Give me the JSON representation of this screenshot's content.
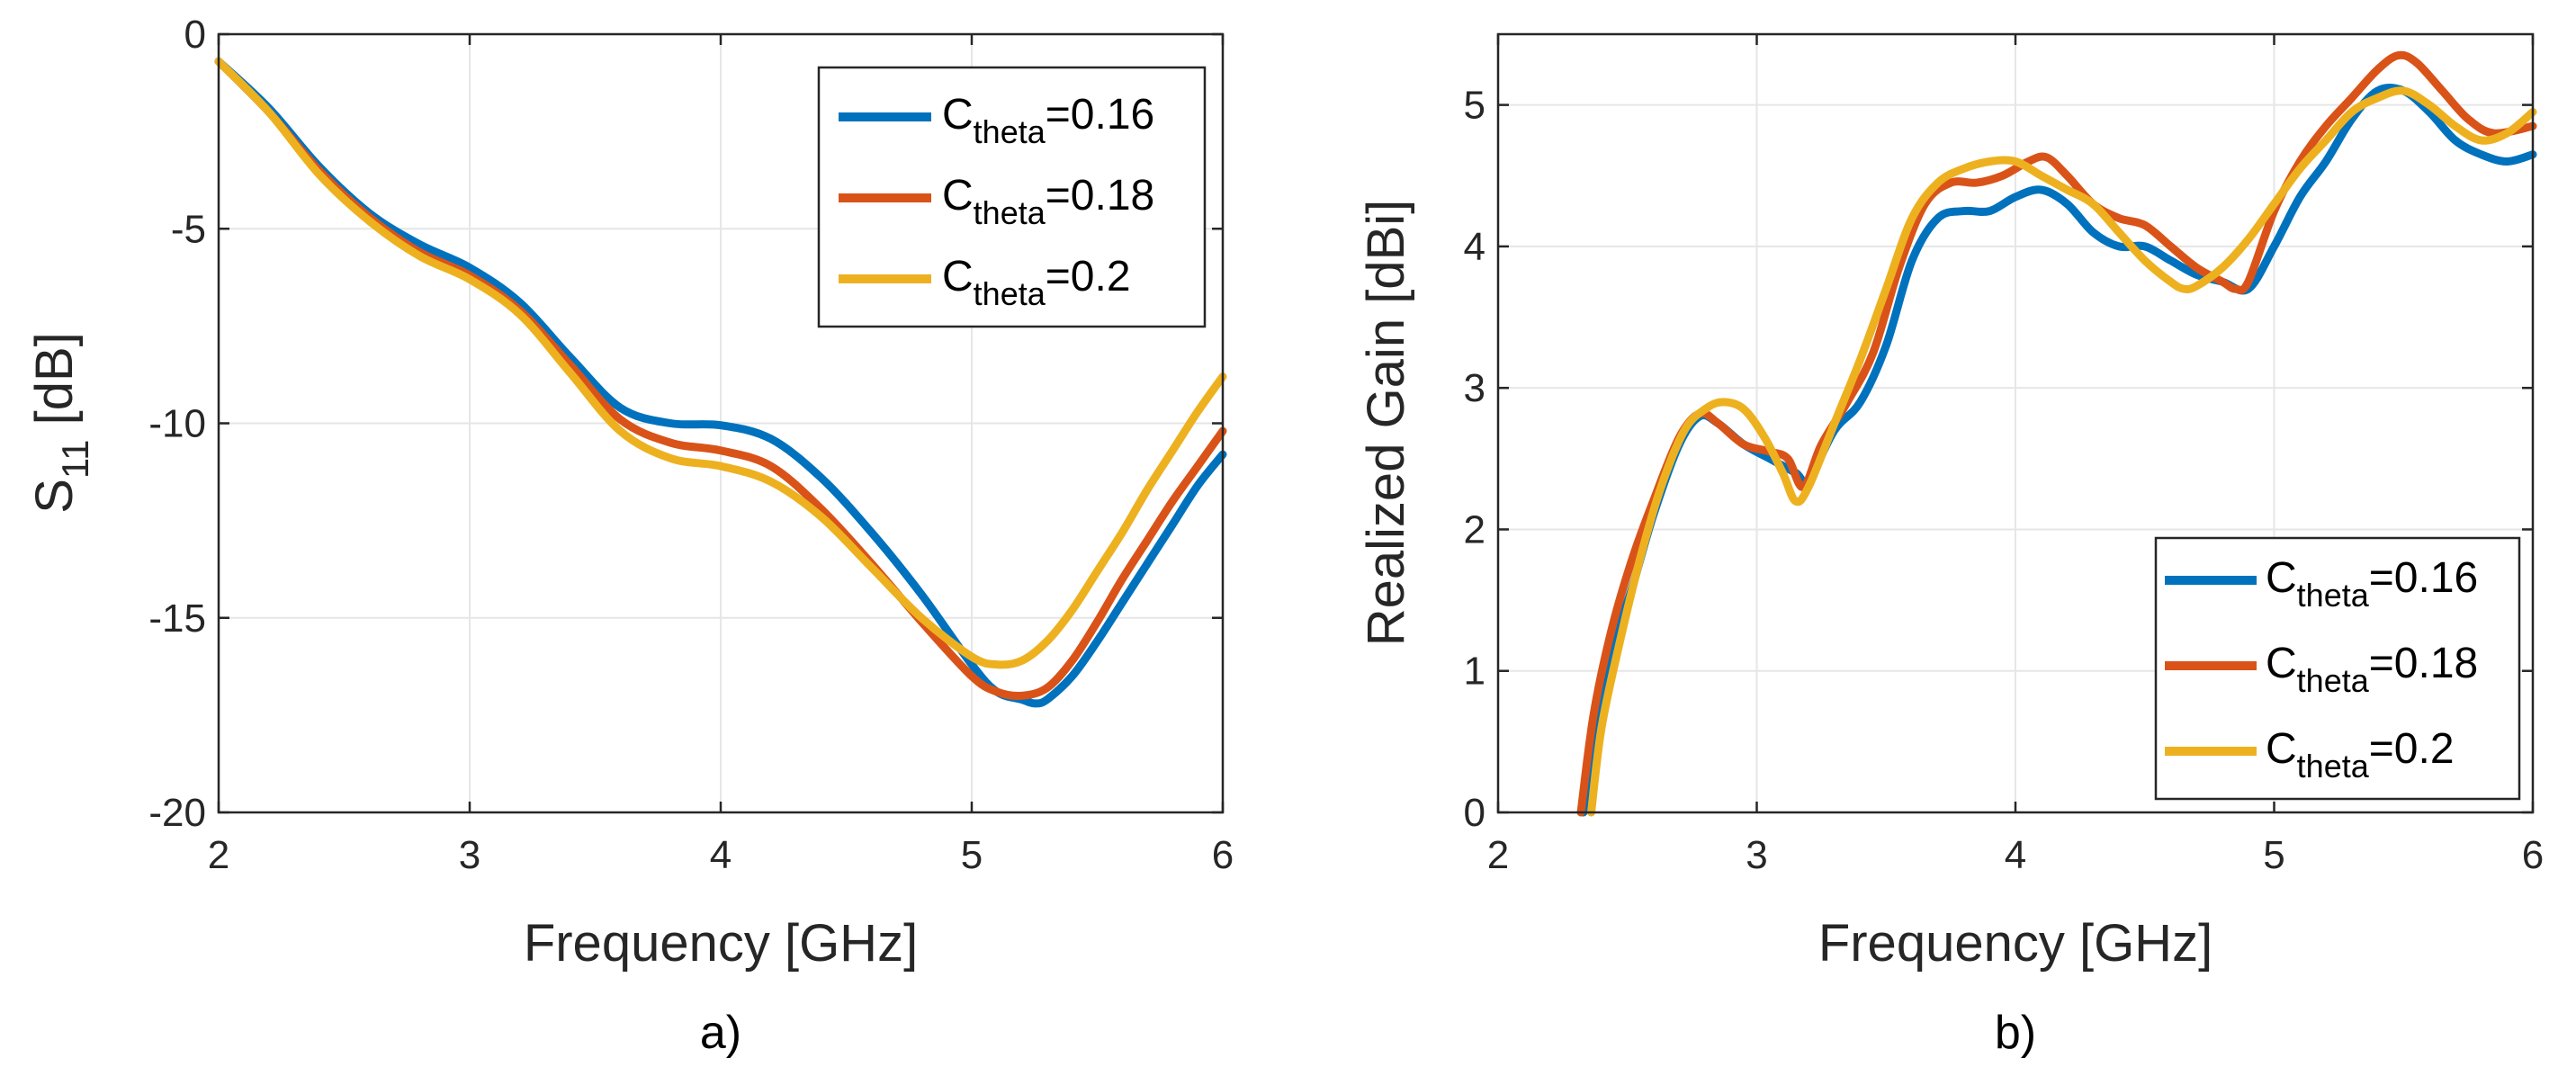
{
  "chart_data": [
    {
      "type": "line",
      "panel_label": "a)",
      "xlabel": "Frequency [GHz]",
      "ylabel_main": "S",
      "ylabel_sub": "11",
      "ylabel_suffix": " [dB]",
      "xlim": [
        2,
        6
      ],
      "ylim": [
        -20,
        0
      ],
      "xticks": [
        2,
        3,
        4,
        5,
        6
      ],
      "yticks": [
        0,
        -5,
        -10,
        -15,
        -20
      ],
      "grid": true,
      "legend_position": "top-right",
      "series": [
        {
          "name_main": "C",
          "name_sub": "theta",
          "name_suffix": "=0.16",
          "color": "#0072BD",
          "x": [
            2,
            2.2,
            2.4,
            2.6,
            2.8,
            3.0,
            3.2,
            3.4,
            3.6,
            3.8,
            4.0,
            4.2,
            4.4,
            4.6,
            4.8,
            5.0,
            5.1,
            5.2,
            5.25,
            5.3,
            5.4,
            5.5,
            5.6,
            5.7,
            5.8,
            5.9,
            6.0
          ],
          "y": [
            -0.7,
            -1.9,
            -3.4,
            -4.6,
            -5.4,
            -6.0,
            -6.9,
            -8.3,
            -9.6,
            -10.0,
            -10.05,
            -10.4,
            -11.4,
            -12.8,
            -14.4,
            -16.2,
            -16.9,
            -17.1,
            -17.2,
            -17.1,
            -16.5,
            -15.6,
            -14.6,
            -13.6,
            -12.6,
            -11.6,
            -10.8
          ]
        },
        {
          "name_main": "C",
          "name_sub": "theta",
          "name_suffix": "=0.18",
          "color": "#D95319",
          "x": [
            2,
            2.2,
            2.4,
            2.6,
            2.8,
            3.0,
            3.2,
            3.4,
            3.6,
            3.8,
            4.0,
            4.2,
            4.4,
            4.6,
            4.8,
            5.0,
            5.1,
            5.2,
            5.3,
            5.4,
            5.5,
            5.6,
            5.7,
            5.8,
            5.9,
            6.0
          ],
          "y": [
            -0.7,
            -2.0,
            -3.5,
            -4.7,
            -5.6,
            -6.2,
            -7.1,
            -8.5,
            -9.9,
            -10.5,
            -10.7,
            -11.1,
            -12.2,
            -13.6,
            -15.1,
            -16.5,
            -16.9,
            -17.0,
            -16.8,
            -16.1,
            -15.1,
            -14.0,
            -13.0,
            -12.0,
            -11.1,
            -10.2
          ]
        },
        {
          "name_main": "C",
          "name_sub": "theta",
          "name_suffix": "=0.2",
          "color": "#EDB120",
          "x": [
            2,
            2.2,
            2.4,
            2.6,
            2.8,
            3.0,
            3.2,
            3.4,
            3.6,
            3.8,
            4.0,
            4.2,
            4.4,
            4.6,
            4.8,
            5.0,
            5.1,
            5.2,
            5.3,
            5.4,
            5.5,
            5.6,
            5.7,
            5.8,
            5.9,
            6.0
          ],
          "y": [
            -0.7,
            -2.0,
            -3.6,
            -4.8,
            -5.7,
            -6.3,
            -7.2,
            -8.7,
            -10.2,
            -10.9,
            -11.1,
            -11.5,
            -12.4,
            -13.7,
            -15.0,
            -16.0,
            -16.2,
            -16.1,
            -15.6,
            -14.8,
            -13.8,
            -12.8,
            -11.7,
            -10.7,
            -9.7,
            -8.8
          ]
        }
      ]
    },
    {
      "type": "line",
      "panel_label": "b)",
      "xlabel": "Frequency [GHz]",
      "ylabel": "Realized Gain [dBi]",
      "xlim": [
        2,
        6
      ],
      "ylim": [
        0,
        5.5
      ],
      "xticks": [
        2,
        3,
        4,
        5,
        6
      ],
      "yticks": [
        0,
        1,
        2,
        3,
        4,
        5
      ],
      "grid": true,
      "legend_position": "bottom-right",
      "series": [
        {
          "name_main": "C",
          "name_sub": "theta",
          "name_suffix": "=0.16",
          "color": "#0072BD",
          "x": [
            2.33,
            2.38,
            2.45,
            2.52,
            2.6,
            2.7,
            2.78,
            2.85,
            2.95,
            3.05,
            3.15,
            3.2,
            3.3,
            3.4,
            3.5,
            3.6,
            3.7,
            3.8,
            3.9,
            4.0,
            4.1,
            4.2,
            4.3,
            4.4,
            4.5,
            4.6,
            4.7,
            4.8,
            4.9,
            5.0,
            5.1,
            5.2,
            5.3,
            5.4,
            5.5,
            5.6,
            5.7,
            5.8,
            5.9,
            6.0
          ],
          "y": [
            0,
            0.6,
            1.2,
            1.6,
            2.1,
            2.6,
            2.8,
            2.75,
            2.6,
            2.5,
            2.4,
            2.35,
            2.7,
            2.9,
            3.3,
            3.9,
            4.2,
            4.25,
            4.25,
            4.35,
            4.4,
            4.3,
            4.1,
            4.0,
            4.0,
            3.9,
            3.8,
            3.75,
            3.7,
            4.0,
            4.35,
            4.6,
            4.9,
            5.1,
            5.1,
            4.95,
            4.75,
            4.65,
            4.6,
            4.65
          ]
        },
        {
          "name_main": "C",
          "name_sub": "theta",
          "name_suffix": "=0.18",
          "color": "#D95319",
          "x": [
            2.32,
            2.37,
            2.44,
            2.52,
            2.6,
            2.7,
            2.78,
            2.85,
            2.95,
            3.05,
            3.12,
            3.18,
            3.25,
            3.35,
            3.45,
            3.55,
            3.65,
            3.75,
            3.85,
            3.95,
            4.05,
            4.12,
            4.2,
            4.3,
            4.4,
            4.5,
            4.6,
            4.7,
            4.8,
            4.85,
            4.9,
            5.0,
            5.1,
            5.2,
            5.3,
            5.4,
            5.48,
            5.55,
            5.65,
            5.75,
            5.85,
            6.0
          ],
          "y": [
            0,
            0.7,
            1.3,
            1.8,
            2.2,
            2.65,
            2.82,
            2.75,
            2.6,
            2.55,
            2.5,
            2.3,
            2.6,
            2.9,
            3.25,
            3.85,
            4.3,
            4.45,
            4.45,
            4.5,
            4.6,
            4.63,
            4.5,
            4.3,
            4.2,
            4.15,
            4.0,
            3.85,
            3.75,
            3.7,
            3.75,
            4.25,
            4.6,
            4.85,
            5.05,
            5.25,
            5.35,
            5.3,
            5.1,
            4.9,
            4.8,
            4.85
          ]
        },
        {
          "name_main": "C",
          "name_sub": "theta",
          "name_suffix": "=0.2",
          "color": "#EDB120",
          "x": [
            2.36,
            2.4,
            2.47,
            2.55,
            2.63,
            2.72,
            2.8,
            2.87,
            2.95,
            3.03,
            3.1,
            3.15,
            3.2,
            3.3,
            3.4,
            3.5,
            3.6,
            3.7,
            3.8,
            3.9,
            4.0,
            4.1,
            4.2,
            4.3,
            4.4,
            4.5,
            4.6,
            4.65,
            4.7,
            4.8,
            4.9,
            5.0,
            5.1,
            5.2,
            5.3,
            5.4,
            5.5,
            5.6,
            5.7,
            5.8,
            5.9,
            6.0
          ],
          "y": [
            0,
            0.6,
            1.2,
            1.8,
            2.3,
            2.7,
            2.85,
            2.9,
            2.85,
            2.65,
            2.4,
            2.2,
            2.3,
            2.75,
            3.2,
            3.7,
            4.2,
            4.45,
            4.55,
            4.6,
            4.6,
            4.5,
            4.4,
            4.3,
            4.1,
            3.9,
            3.75,
            3.7,
            3.72,
            3.85,
            4.05,
            4.3,
            4.55,
            4.75,
            4.95,
            5.05,
            5.1,
            5.0,
            4.85,
            4.75,
            4.8,
            4.95
          ]
        }
      ]
    }
  ]
}
